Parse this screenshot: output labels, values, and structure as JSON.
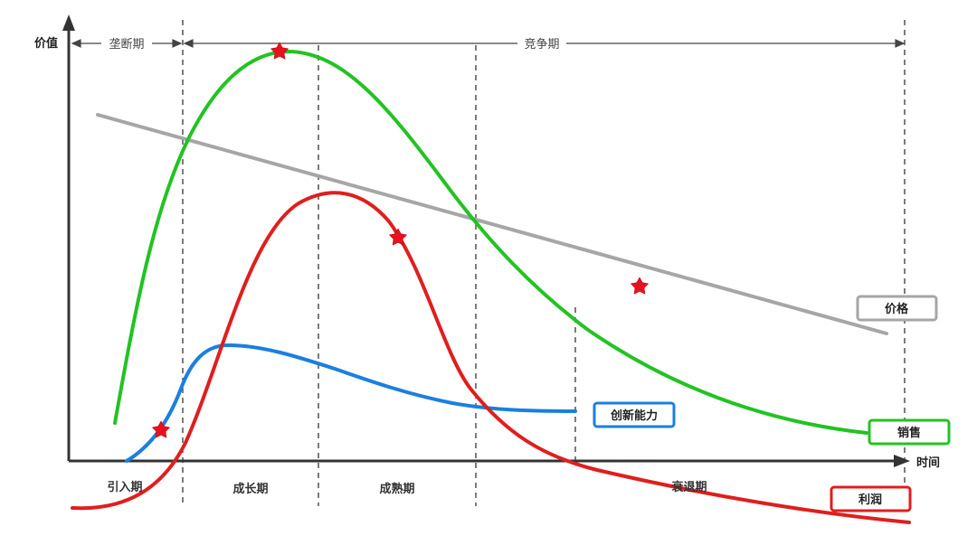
{
  "axes": {
    "y_label": "价值",
    "x_label": "时间"
  },
  "periods": {
    "monopoly": "垄断期",
    "competition": "竞争期"
  },
  "phases": {
    "introduction": "引入期",
    "growth": "成长期",
    "maturity": "成熟期",
    "decline": "衰退期"
  },
  "legend": {
    "price": "价格",
    "innovation": "创新能力",
    "sales": "销售",
    "profit": "利润"
  },
  "colors": {
    "price": "#a6a6a6",
    "innovation": "#1a7fe0",
    "sales": "#22c322",
    "profit": "#e01e1e",
    "star": "#e8121e",
    "axis": "#333333"
  }
}
